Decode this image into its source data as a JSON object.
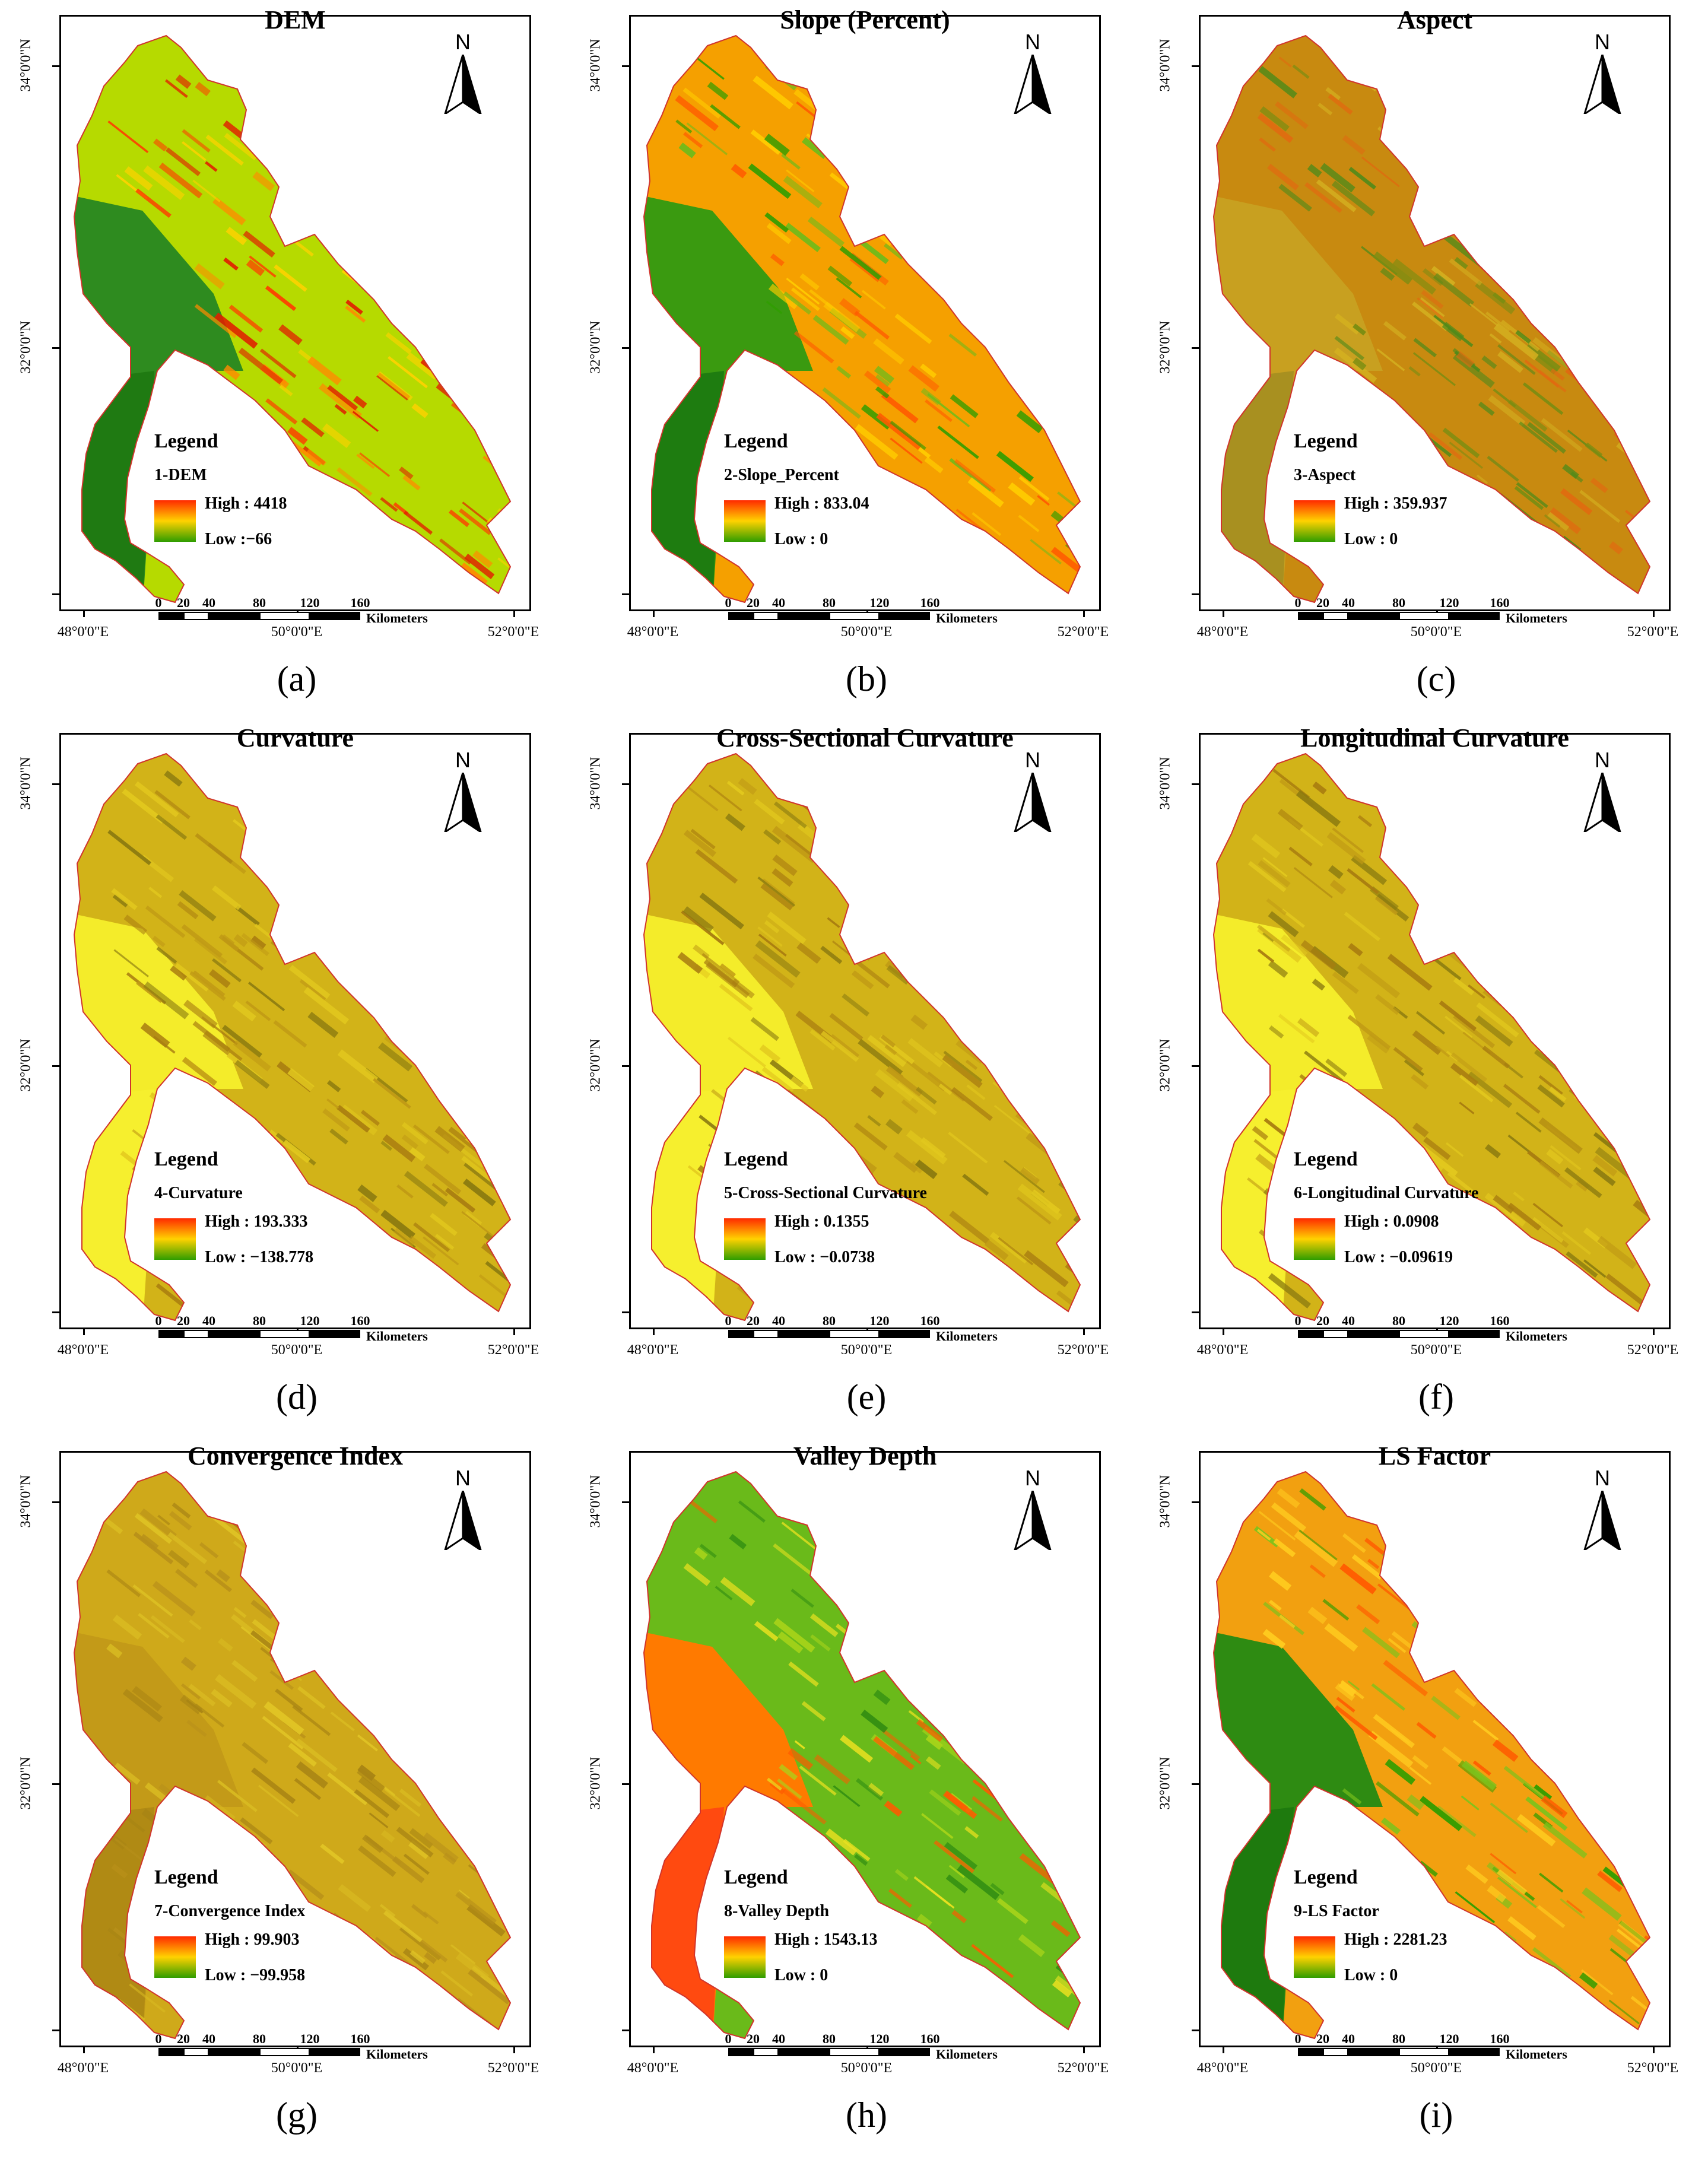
{
  "axes": {
    "lat_labels": [
      "34°0'0\"N",
      "32°0'0\"N"
    ],
    "lon_labels": [
      "48°0'0\"E",
      "50°0'0\"E",
      "52°0'0\"E"
    ]
  },
  "scale_bar": {
    "ticks": [
      "0",
      "20",
      "40",
      "80",
      "120",
      "160"
    ],
    "unit": "Kilometers"
  },
  "north_label": "N",
  "legend_heading": "Legend",
  "panels": [
    {
      "letter": "(a)",
      "title": "DEM",
      "layer": "1-DEM",
      "high": "High : 4418",
      "low": "Low :−66",
      "palette": "dem",
      "ramp": [
        "#ff2a00",
        "#ffd200",
        "#2f9d00"
      ]
    },
    {
      "letter": "(b)",
      "title": "Slope (Percent)",
      "layer": "2-Slope_Percent",
      "high": "High : 833.04",
      "low": "Low : 0",
      "palette": "slope",
      "ramp": [
        "#ff2a00",
        "#ffd200",
        "#2f9d00"
      ]
    },
    {
      "letter": "(c)",
      "title": "Aspect",
      "layer": "3-Aspect",
      "high": "High : 359.937",
      "low": "Low :  0",
      "palette": "aspect",
      "ramp": [
        "#ff2a00",
        "#ffd200",
        "#2f9d00"
      ]
    },
    {
      "letter": "(d)",
      "title": "Curvature",
      "layer": "4-Curvature",
      "high": "High : 193.333",
      "low": "Low : −138.778",
      "palette": "curv",
      "ramp": [
        "#ff2a00",
        "#ffd200",
        "#2f9d00"
      ]
    },
    {
      "letter": "(e)",
      "title": "Cross-Sectional Curvature",
      "layer": "5-Cross-Sectional Curvature",
      "high": "High : 0.1355",
      "low": "Low : −0.0738",
      "palette": "curv",
      "ramp": [
        "#ff2a00",
        "#ffd200",
        "#2f9d00"
      ]
    },
    {
      "letter": "(f)",
      "title": "Longitudinal Curvature",
      "layer": "6-Longitudinal Curvature",
      "high": "High : 0.0908",
      "low": "Low : −0.09619",
      "palette": "curv",
      "ramp": [
        "#ff2a00",
        "#ffd200",
        "#2f9d00"
      ]
    },
    {
      "letter": "(g)",
      "title": "Convergence Index",
      "layer": "7-Convergence Index",
      "high": "High : 99.903",
      "low": "Low : −99.958",
      "palette": "conv",
      "ramp": [
        "#ff2a00",
        "#ffd200",
        "#2f9d00"
      ]
    },
    {
      "letter": "(h)",
      "title": "Valley Depth",
      "layer": "8-Valley Depth",
      "high": "High : 1543.13",
      "low": "Low :  0",
      "palette": "valley",
      "ramp": [
        "#ff2a00",
        "#ffd200",
        "#2f9d00"
      ]
    },
    {
      "letter": "(i)",
      "title": "LS Factor",
      "layer": "9-LS Factor",
      "high": "High : 2281.23",
      "low": "Low : 0",
      "palette": "ls",
      "ramp": [
        "#ff2a00",
        "#ffd200",
        "#2f9d00"
      ]
    }
  ]
}
